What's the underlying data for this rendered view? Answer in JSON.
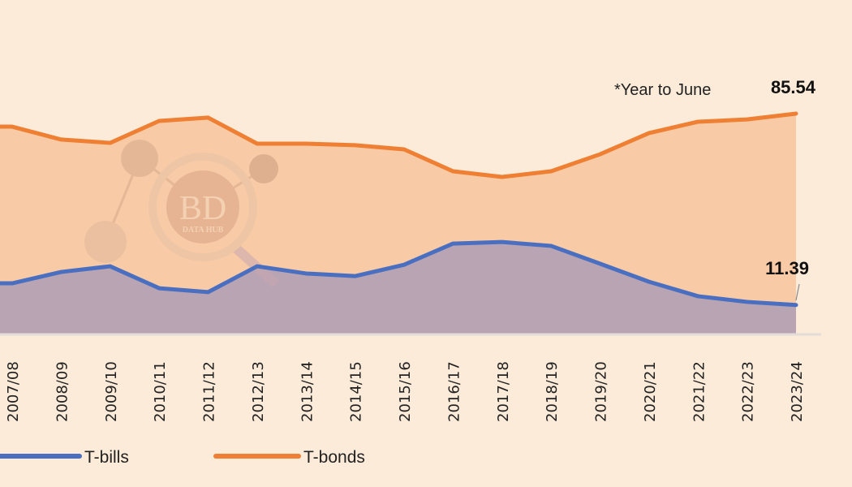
{
  "chart_data": {
    "type": "area",
    "title": "",
    "xlabel": "",
    "ylabel": "",
    "ylim": [
      0,
      90
    ],
    "grid": false,
    "legend_position": "bottom-left",
    "note": "*Year to June",
    "categories": [
      "2007/08",
      "2008/09",
      "2009/10",
      "2010/11",
      "2011/12",
      "2012/13",
      "2013/14",
      "2014/15",
      "2015/16",
      "2016/17",
      "2017/18",
      "2018/19",
      "2019/20",
      "2020/21",
      "2021/22",
      "2022/23",
      "2023/24"
    ],
    "series": [
      {
        "name": "T-bills",
        "color": "#4a6fc0",
        "fill": "#b9a4b3",
        "values": [
          19.8,
          24.2,
          26.4,
          17.9,
          16.4,
          26.4,
          23.6,
          22.6,
          27.0,
          35.2,
          35.8,
          34.3,
          27.4,
          20.4,
          14.8,
          12.6,
          11.39
        ]
      },
      {
        "name": "T-bonds",
        "color": "#ee7f33",
        "fill": "#f8cba6",
        "values": [
          80.5,
          75.5,
          74.2,
          82.7,
          84.0,
          73.9,
          73.9,
          73.3,
          71.7,
          63.2,
          61.0,
          63.2,
          69.8,
          78.0,
          82.4,
          83.3,
          85.54
        ]
      }
    ],
    "data_labels": {
      "T-bonds": "85.54",
      "T-bills": "11.39"
    }
  },
  "watermark": {
    "text": "BD",
    "subtext": "DATA HUB"
  }
}
